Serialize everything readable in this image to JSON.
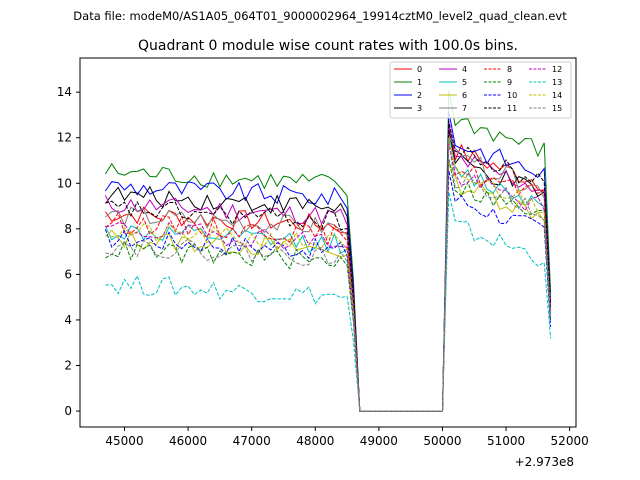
{
  "chart_data": {
    "type": "line",
    "suptitle": "Data file: modeM0/AS1A05_064T01_9000002964_19914cztM0_level2_quad_clean.evt",
    "title": "Quadrant 0 module wise count rates with 100.0s bins.",
    "xlabel": "",
    "ylabel": "",
    "x_offset_label": "+2.973e8",
    "xlim": [
      44300,
      52100
    ],
    "ylim": [
      -0.7,
      15.5
    ],
    "x_ticks": [
      45000,
      46000,
      47000,
      48000,
      49000,
      50000,
      51000,
      52000
    ],
    "y_ticks": [
      0,
      2,
      4,
      6,
      8,
      10,
      12,
      14
    ],
    "grid": false,
    "legend_position": "top-right",
    "legend_columns": 4,
    "segments": [
      {
        "x_start": 44700,
        "x_end": 48600,
        "step": 100
      },
      {
        "x_start": 48700,
        "x_end": 50000,
        "step": 100
      },
      {
        "x_start": 50100,
        "x_end": 51700,
        "step": 100
      }
    ],
    "series": [
      {
        "name": "0",
        "color": "#ff0000",
        "dash": "solid",
        "a_mean": 8.7,
        "b_mean": 10.9
      },
      {
        "name": "1",
        "color": "#008000",
        "dash": "solid",
        "a_mean": 10.5,
        "b_mean": 12.3
      },
      {
        "name": "2",
        "color": "#0000ff",
        "dash": "solid",
        "a_mean": 9.9,
        "b_mean": 11.3
      },
      {
        "name": "3",
        "color": "#000000",
        "dash": "solid",
        "a_mean": 9.5,
        "b_mean": 10.4
      },
      {
        "name": "4",
        "color": "#bf00bf",
        "dash": "solid",
        "a_mean": 9.1,
        "b_mean": 10.6
      },
      {
        "name": "5",
        "color": "#00bfbf",
        "dash": "solid",
        "a_mean": 7.9,
        "b_mean": 10.0
      },
      {
        "name": "6",
        "color": "#bfbf00",
        "dash": "solid",
        "a_mean": 7.6,
        "b_mean": 9.5
      },
      {
        "name": "7",
        "color": "#808080",
        "dash": "solid",
        "a_mean": 8.6,
        "b_mean": 10.6
      },
      {
        "name": "8",
        "color": "#ff0000",
        "dash": "dashed",
        "a_mean": 8.3,
        "b_mean": 10.2
      },
      {
        "name": "9",
        "color": "#008000",
        "dash": "dashed",
        "a_mean": 7.1,
        "b_mean": 9.4
      },
      {
        "name": "10",
        "color": "#0000ff",
        "dash": "dashed",
        "a_mean": 7.6,
        "b_mean": 8.8
      },
      {
        "name": "11",
        "color": "#000000",
        "dash": "dashed",
        "a_mean": 8.9,
        "b_mean": 10.9
      },
      {
        "name": "12",
        "color": "#bf00bf",
        "dash": "dashed",
        "a_mean": 8.0,
        "b_mean": 9.8
      },
      {
        "name": "13",
        "color": "#00bfbf",
        "dash": "dashed",
        "a_mean": 5.6,
        "b_mean": 7.6
      },
      {
        "name": "14",
        "color": "#bfbf00",
        "dash": "dashed",
        "a_mean": 7.9,
        "b_mean": 9.9
      },
      {
        "name": "15",
        "color": "#808080",
        "dash": "dashed",
        "a_mean": 7.3,
        "b_mean": 9.7
      }
    ]
  }
}
